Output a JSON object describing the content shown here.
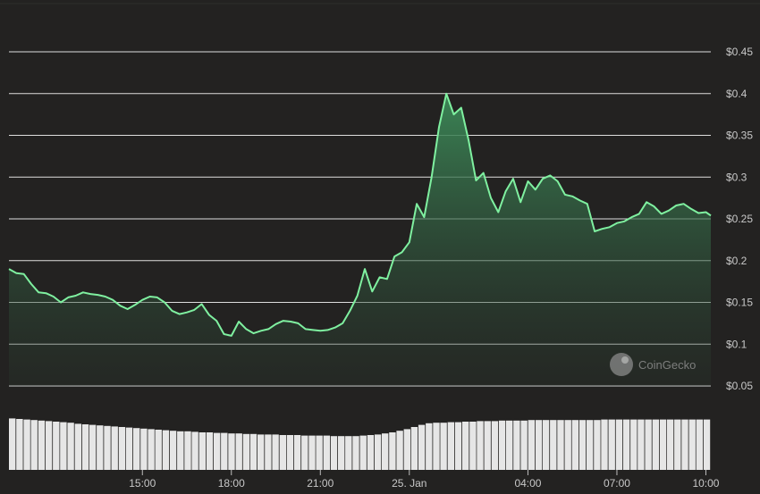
{
  "chart_data": {
    "type": "area",
    "currency_unit": "$",
    "watermark": "CoinGecko",
    "colors": {
      "line": "#7ff0a0",
      "background": "#232221",
      "volume": "#e6e6e6"
    },
    "grid": true,
    "ylim": [
      0.05,
      0.45
    ],
    "y_ticks": [
      "$0.45",
      "$0.4",
      "$0.35",
      "$0.3",
      "$0.25",
      "$0.2",
      "$0.15",
      "$0.1",
      "$0.05"
    ],
    "y_tick_values": [
      0.45,
      0.4,
      0.35,
      0.3,
      0.25,
      0.2,
      0.15,
      0.1,
      0.05
    ],
    "x_ticks": [
      "15:00",
      "18:00",
      "21:00",
      "25. Jan",
      "04:00",
      "07:00",
      "10:00"
    ],
    "x_tick_times": [
      "24 Jan 15:00",
      "24 Jan 18:00",
      "24 Jan 21:00",
      "25 Jan 00:00",
      "25 Jan 04:00",
      "25 Jan 07:00",
      "25 Jan 10:00"
    ],
    "x_range": [
      "24 Jan 10:30",
      "25 Jan 10:10"
    ],
    "series": [
      {
        "values": [
          [
            "24 Jan 10:30",
            0.19
          ],
          [
            "24 Jan 10:45",
            0.185
          ],
          [
            "24 Jan 11:00",
            0.184
          ],
          [
            "24 Jan 11:15",
            0.172
          ],
          [
            "24 Jan 11:30",
            0.162
          ],
          [
            "24 Jan 11:45",
            0.161
          ],
          [
            "24 Jan 12:00",
            0.157
          ],
          [
            "24 Jan 12:15",
            0.15
          ],
          [
            "24 Jan 12:30",
            0.156
          ],
          [
            "24 Jan 12:45",
            0.158
          ],
          [
            "24 Jan 13:00",
            0.162
          ],
          [
            "24 Jan 13:15",
            0.16
          ],
          [
            "24 Jan 13:30",
            0.159
          ],
          [
            "24 Jan 13:45",
            0.157
          ],
          [
            "24 Jan 14:00",
            0.153
          ],
          [
            "24 Jan 14:15",
            0.146
          ],
          [
            "24 Jan 14:30",
            0.142
          ],
          [
            "24 Jan 14:45",
            0.147
          ],
          [
            "24 Jan 15:00",
            0.153
          ],
          [
            "24 Jan 15:15",
            0.157
          ],
          [
            "24 Jan 15:30",
            0.156
          ],
          [
            "24 Jan 15:45",
            0.15
          ],
          [
            "24 Jan 16:00",
            0.14
          ],
          [
            "24 Jan 16:15",
            0.136
          ],
          [
            "24 Jan 16:30",
            0.138
          ],
          [
            "24 Jan 16:45",
            0.141
          ],
          [
            "24 Jan 17:00",
            0.148
          ],
          [
            "24 Jan 17:15",
            0.135
          ],
          [
            "24 Jan 17:30",
            0.128
          ],
          [
            "24 Jan 17:45",
            0.112
          ],
          [
            "24 Jan 18:00",
            0.11
          ],
          [
            "24 Jan 18:15",
            0.127
          ],
          [
            "24 Jan 18:30",
            0.118
          ],
          [
            "24 Jan 18:45",
            0.113
          ],
          [
            "24 Jan 19:00",
            0.116
          ],
          [
            "24 Jan 19:15",
            0.118
          ],
          [
            "24 Jan 19:30",
            0.124
          ],
          [
            "24 Jan 19:45",
            0.128
          ],
          [
            "24 Jan 20:00",
            0.127
          ],
          [
            "24 Jan 20:15",
            0.125
          ],
          [
            "24 Jan 20:30",
            0.118
          ],
          [
            "24 Jan 20:45",
            0.117
          ],
          [
            "24 Jan 21:00",
            0.116
          ],
          [
            "24 Jan 21:15",
            0.117
          ],
          [
            "24 Jan 21:30",
            0.12
          ],
          [
            "24 Jan 21:45",
            0.125
          ],
          [
            "24 Jan 22:00",
            0.14
          ],
          [
            "24 Jan 22:15",
            0.158
          ],
          [
            "24 Jan 22:30",
            0.19
          ],
          [
            "24 Jan 22:45",
            0.163
          ],
          [
            "24 Jan 23:00",
            0.18
          ],
          [
            "24 Jan 23:15",
            0.178
          ],
          [
            "24 Jan 23:30",
            0.205
          ],
          [
            "24 Jan 23:45",
            0.21
          ],
          [
            "25 Jan 00:00",
            0.222
          ],
          [
            "25 Jan 00:15",
            0.268
          ],
          [
            "25 Jan 00:30",
            0.252
          ],
          [
            "25 Jan 00:45",
            0.3
          ],
          [
            "25 Jan 01:00",
            0.36
          ],
          [
            "25 Jan 01:15",
            0.4
          ],
          [
            "25 Jan 01:30",
            0.375
          ],
          [
            "25 Jan 01:45",
            0.383
          ],
          [
            "25 Jan 02:00",
            0.344
          ],
          [
            "25 Jan 02:15",
            0.296
          ],
          [
            "25 Jan 02:30",
            0.305
          ],
          [
            "25 Jan 02:45",
            0.275
          ],
          [
            "25 Jan 03:00",
            0.258
          ],
          [
            "25 Jan 03:15",
            0.283
          ],
          [
            "25 Jan 03:30",
            0.298
          ],
          [
            "25 Jan 03:45",
            0.27
          ],
          [
            "25 Jan 04:00",
            0.295
          ],
          [
            "25 Jan 04:15",
            0.285
          ],
          [
            "25 Jan 04:30",
            0.298
          ],
          [
            "25 Jan 04:45",
            0.302
          ],
          [
            "25 Jan 05:00",
            0.295
          ],
          [
            "25 Jan 05:15",
            0.279
          ],
          [
            "25 Jan 05:30",
            0.277
          ],
          [
            "25 Jan 05:45",
            0.272
          ],
          [
            "25 Jan 06:00",
            0.268
          ],
          [
            "25 Jan 06:15",
            0.235
          ],
          [
            "25 Jan 06:30",
            0.238
          ],
          [
            "25 Jan 06:45",
            0.24
          ],
          [
            "25 Jan 07:00",
            0.245
          ],
          [
            "25 Jan 07:15",
            0.247
          ],
          [
            "25 Jan 07:30",
            0.252
          ],
          [
            "25 Jan 07:45",
            0.256
          ],
          [
            "25 Jan 08:00",
            0.27
          ],
          [
            "25 Jan 08:15",
            0.265
          ],
          [
            "25 Jan 08:30",
            0.256
          ],
          [
            "25 Jan 08:45",
            0.26
          ],
          [
            "25 Jan 09:00",
            0.266
          ],
          [
            "25 Jan 09:15",
            0.268
          ],
          [
            "25 Jan 09:30",
            0.262
          ],
          [
            "25 Jan 09:45",
            0.257
          ],
          [
            "25 Jan 10:00",
            0.258
          ],
          [
            "25 Jan 10:10",
            0.254
          ]
        ]
      }
    ],
    "volume_relative": [
      0.96,
      0.95,
      0.94,
      0.93,
      0.92,
      0.91,
      0.9,
      0.89,
      0.88,
      0.86,
      0.85,
      0.84,
      0.83,
      0.82,
      0.81,
      0.8,
      0.79,
      0.78,
      0.77,
      0.76,
      0.75,
      0.74,
      0.73,
      0.72,
      0.72,
      0.71,
      0.7,
      0.7,
      0.69,
      0.69,
      0.68,
      0.68,
      0.67,
      0.67,
      0.66,
      0.66,
      0.66,
      0.65,
      0.65,
      0.65,
      0.64,
      0.64,
      0.64,
      0.64,
      0.63,
      0.63,
      0.63,
      0.63,
      0.64,
      0.65,
      0.66,
      0.68,
      0.7,
      0.73,
      0.76,
      0.8,
      0.84,
      0.87,
      0.88,
      0.88,
      0.89,
      0.89,
      0.9,
      0.9,
      0.91,
      0.91,
      0.91,
      0.92,
      0.92,
      0.92,
      0.92,
      0.93,
      0.93,
      0.93,
      0.93,
      0.93,
      0.93,
      0.93,
      0.93,
      0.93,
      0.93,
      0.94,
      0.94,
      0.94,
      0.94,
      0.94,
      0.94,
      0.94,
      0.94,
      0.94,
      0.94,
      0.94,
      0.94,
      0.94,
      0.94,
      0.94
    ]
  }
}
